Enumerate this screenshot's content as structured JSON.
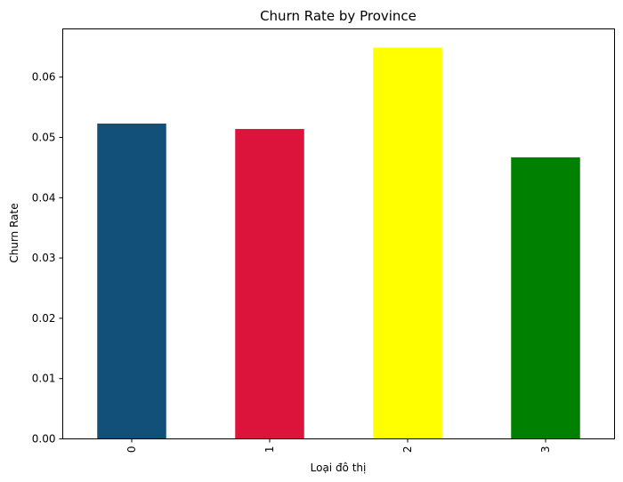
{
  "chart_data": {
    "type": "bar",
    "title": "Churn Rate by Province",
    "xlabel": "Loại đô thị",
    "ylabel": "Churn Rate",
    "categories": [
      "0",
      "1",
      "2",
      "3"
    ],
    "values": [
      0.0523,
      0.0514,
      0.0649,
      0.0467
    ],
    "bar_colors": [
      "#12507a",
      "#dc143c",
      "#ffff00",
      "#008000"
    ],
    "ylim": [
      0,
      0.068
    ],
    "yticks": [
      0.0,
      0.01,
      0.02,
      0.03,
      0.04,
      0.05,
      0.06
    ],
    "ytick_labels": [
      "0.00",
      "0.01",
      "0.02",
      "0.03",
      "0.04",
      "0.05",
      "0.06"
    ],
    "grid": false,
    "legend": "none"
  }
}
